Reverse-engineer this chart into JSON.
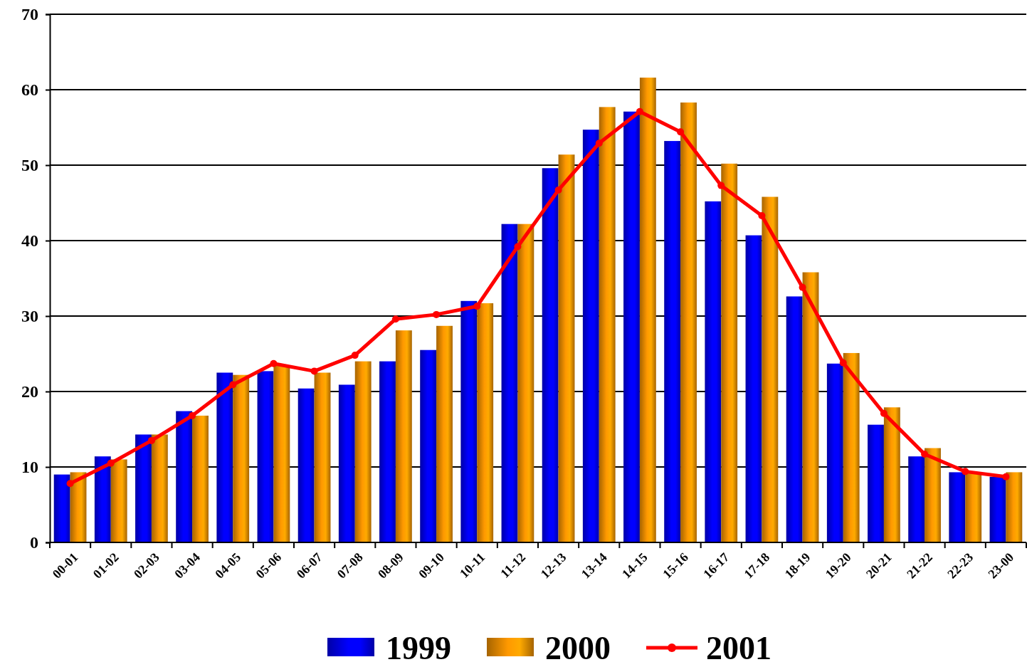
{
  "chart_data": {
    "type": "bar",
    "categories": [
      "00-01",
      "01-02",
      "02-03",
      "03-04",
      "04-05",
      "05-06",
      "06-07",
      "07-08",
      "08-09",
      "09-10",
      "10-11",
      "11-12",
      "12-13",
      "13-14",
      "14-15",
      "15-16",
      "16-17",
      "17-18",
      "18-19",
      "19-20",
      "20-21",
      "21-22",
      "22-23",
      "23-00"
    ],
    "series": [
      {
        "name": "1999",
        "color": "#0000ff",
        "values": [
          9.0,
          11.4,
          14.3,
          17.4,
          22.5,
          22.7,
          20.4,
          20.9,
          24.0,
          25.5,
          32.0,
          42.2,
          49.6,
          54.7,
          57.1,
          53.2,
          45.2,
          40.7,
          32.6,
          23.7,
          15.6,
          11.4,
          9.3,
          8.7
        ]
      },
      {
        "name": "2000",
        "color": "#ff9900",
        "values": [
          9.3,
          11.0,
          14.3,
          16.8,
          22.2,
          23.4,
          22.5,
          24.0,
          28.1,
          28.7,
          31.7,
          42.2,
          51.4,
          57.7,
          61.6,
          58.3,
          50.2,
          45.8,
          35.8,
          25.1,
          17.9,
          12.5,
          9.3,
          9.3
        ]
      },
      {
        "name": "2001",
        "type": "line",
        "color": "#ff0000",
        "marker": "circle",
        "values": [
          7.8,
          10.5,
          13.5,
          16.8,
          20.9,
          23.7,
          22.7,
          24.8,
          29.6,
          30.2,
          31.3,
          39.2,
          46.7,
          52.9,
          57.1,
          54.4,
          47.3,
          43.3,
          33.8,
          23.8,
          17.1,
          11.7,
          9.4,
          8.7
        ]
      }
    ],
    "ylim": [
      0,
      70
    ],
    "yticks": [
      0,
      10,
      20,
      30,
      40,
      50,
      60,
      70
    ],
    "grid": "y",
    "legend": "bottom"
  }
}
